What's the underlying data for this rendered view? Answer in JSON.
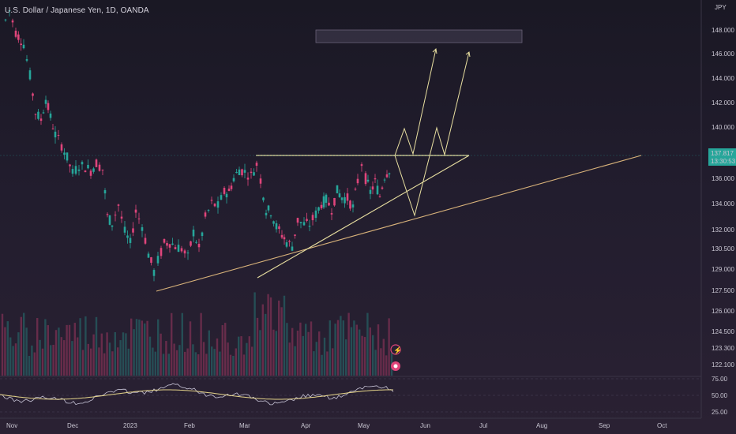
{
  "header": {
    "title": "U.S. Dollar / Japanese Yen, 1D, OANDA"
  },
  "chart_data": {
    "type": "candlestick",
    "currency_label": "JPY",
    "price_axis_ticks": [
      148.0,
      146.0,
      144.0,
      142.0,
      140.0,
      136.0,
      134.0,
      132.0,
      130.5,
      129.0,
      127.5,
      126.0,
      124.5,
      123.3,
      122.1
    ],
    "price_axis_tick_labels": [
      "148.000",
      "146.000",
      "144.000",
      "142.000",
      "140.000",
      "136.000",
      "134.000",
      "132.000",
      "130.500",
      "129.000",
      "127.500",
      "126.000",
      "124.500",
      "123.300",
      "122.100"
    ],
    "last_price": {
      "value": "137.817",
      "countdown": "13:30:53",
      "color": "#26a69a"
    },
    "time_axis_labels": [
      "Nov",
      "Dec",
      "2023",
      "Feb",
      "Mar",
      "Apr",
      "May",
      "Jun",
      "Jul",
      "Aug",
      "Sep",
      "Oct"
    ],
    "indicator": {
      "type": "rsi",
      "ticks": [
        "75.00",
        "50.00",
        "25.00"
      ],
      "colors": {
        "rsi": "#c7c3d6",
        "ma": "#e6d58a"
      }
    },
    "colors": {
      "up": "#26a69a",
      "down": "#e0457b",
      "drawings": "#e8dfa0",
      "channel": "#d8b27a"
    },
    "candles_approx": "daily OHLC from early Nov 2022 to mid May 2023, roughly 150.0 high to 127.2 low"
  }
}
